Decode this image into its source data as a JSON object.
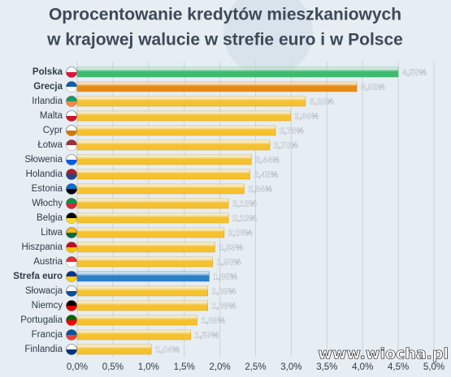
{
  "chart_data": {
    "type": "hbar",
    "title": [
      "Oprocentowanie kredytów mieszkaniowych",
      "w krajowej walucie w strefie euro i w Polsce"
    ],
    "categories": [
      "Polska",
      "Grecja",
      "Irlandia",
      "Malta",
      "Cypr",
      "Łotwa",
      "Słowenia",
      "Holandia",
      "Estonia",
      "Włochy",
      "Belgia",
      "Litwa",
      "Hiszpania",
      "Austria",
      "Strefa euro",
      "Słowacja",
      "Niemcy",
      "Portugalia",
      "Francja",
      "Finlandia"
    ],
    "values": [
      4.5,
      3.92,
      3.2,
      2.99,
      2.78,
      2.7,
      2.44,
      2.42,
      2.34,
      2.12,
      2.12,
      2.06,
      1.93,
      1.9,
      1.85,
      1.83,
      1.83,
      1.68,
      1.59,
      1.04
    ],
    "value_labels": [
      "4,50%",
      "3,92%",
      "3,20%",
      "2,99%",
      "2,78%",
      "2,70%",
      "2,44%",
      "2,42%",
      "2,34%",
      "2,12%",
      "2,12%",
      "2,06%",
      "1,93%",
      "1,90%",
      "1,85%",
      "1,83%",
      "1,83%",
      "1,68%",
      "1,59%",
      "1,04%"
    ],
    "color": "#f5c12e",
    "colors": [
      "#3dba6e",
      "#e58a12",
      "#f5c12e",
      "#f5c12e",
      "#f5c12e",
      "#f5c12e",
      "#f5c12e",
      "#f5c12e",
      "#f5c12e",
      "#f5c12e",
      "#f5c12e",
      "#f5c12e",
      "#f5c12e",
      "#f5c12e",
      "#2b7fc8",
      "#f5c12e",
      "#f5c12e",
      "#f5c12e",
      "#f5c12e",
      "#f5c12e"
    ],
    "xlim": [
      0,
      5
    ],
    "xticks": [
      {
        "value": 0,
        "label": "0,0%"
      },
      {
        "value": 0.5,
        "label": "0,5%"
      },
      {
        "value": 1,
        "label": "1,0%"
      },
      {
        "value": 1.5,
        "label": "1,5%"
      },
      {
        "value": 2,
        "label": "2,0%"
      },
      {
        "value": 2.5,
        "label": "2,5%"
      },
      {
        "value": 3,
        "label": "3,0%"
      },
      {
        "value": 3.5,
        "label": "3,5%"
      },
      {
        "value": 4,
        "label": "4,0%"
      },
      {
        "value": 4.5,
        "label": "4,5%"
      },
      {
        "value": 5,
        "label": "5,0%"
      }
    ],
    "grid": true,
    "watermark": "www.wiocha.pl"
  }
}
